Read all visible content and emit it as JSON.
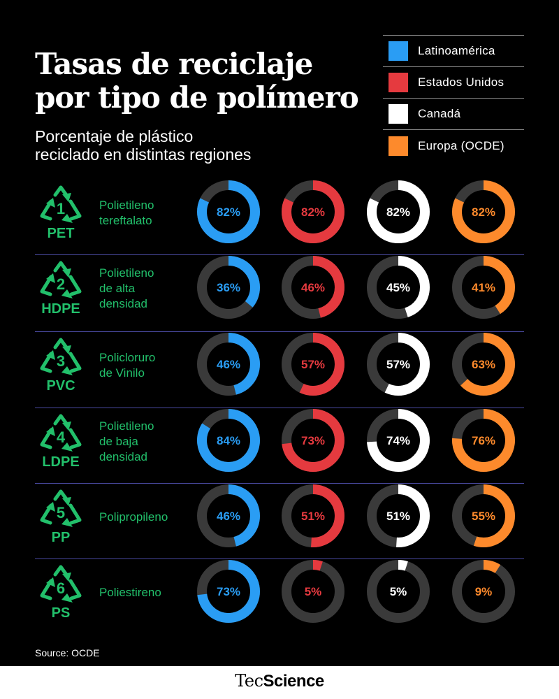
{
  "header": {
    "title_line1": "Tasas de reciclaje",
    "title_line2": "por tipo de polímero",
    "subtitle_line1": "Porcentaje de plástico",
    "subtitle_line2": "reciclado en distintas regiones"
  },
  "colors": {
    "background": "#000000",
    "track": "#3a3a3a",
    "polymer_green": "#22c06b",
    "divider": "#4a4aa0"
  },
  "icons": {
    "recycle": "recycle-triangle-icon"
  },
  "chart_data": {
    "type": "donut-grid",
    "series": [
      {
        "name": "Latinoamérica",
        "color": "#2a9df4",
        "values": [
          82,
          36,
          46,
          84,
          46,
          73
        ]
      },
      {
        "name": "Estados Unidos",
        "color": "#e53a3f",
        "values": [
          82,
          46,
          57,
          73,
          51,
          5
        ]
      },
      {
        "name": "Canadá",
        "color": "#ffffff",
        "values": [
          82,
          45,
          57,
          74,
          51,
          5
        ]
      },
      {
        "name": "Europa (OCDE)",
        "color": "#fd8a2c",
        "values": [
          82,
          41,
          63,
          76,
          55,
          9
        ]
      }
    ],
    "polymers": [
      {
        "code": "1",
        "abbr": "PET",
        "name_lines": [
          "Polietileno",
          "tereftalato"
        ]
      },
      {
        "code": "2",
        "abbr": "HDPE",
        "name_lines": [
          "Polietileno",
          "de alta",
          "densidad"
        ]
      },
      {
        "code": "3",
        "abbr": "PVC",
        "name_lines": [
          "Policloruro",
          "de Vinilo"
        ]
      },
      {
        "code": "4",
        "abbr": "LDPE",
        "name_lines": [
          "Polietileno",
          "de baja",
          "densidad"
        ]
      },
      {
        "code": "5",
        "abbr": "PP",
        "name_lines": [
          "Polipropileno"
        ]
      },
      {
        "code": "6",
        "abbr": "PS",
        "name_lines": [
          "Poliestireno"
        ]
      }
    ],
    "value_suffix": "%",
    "legend_position": "top-right"
  },
  "footer": {
    "source": "Source: OCDE",
    "brand_part1": "Tec",
    "brand_part2": "Science"
  }
}
